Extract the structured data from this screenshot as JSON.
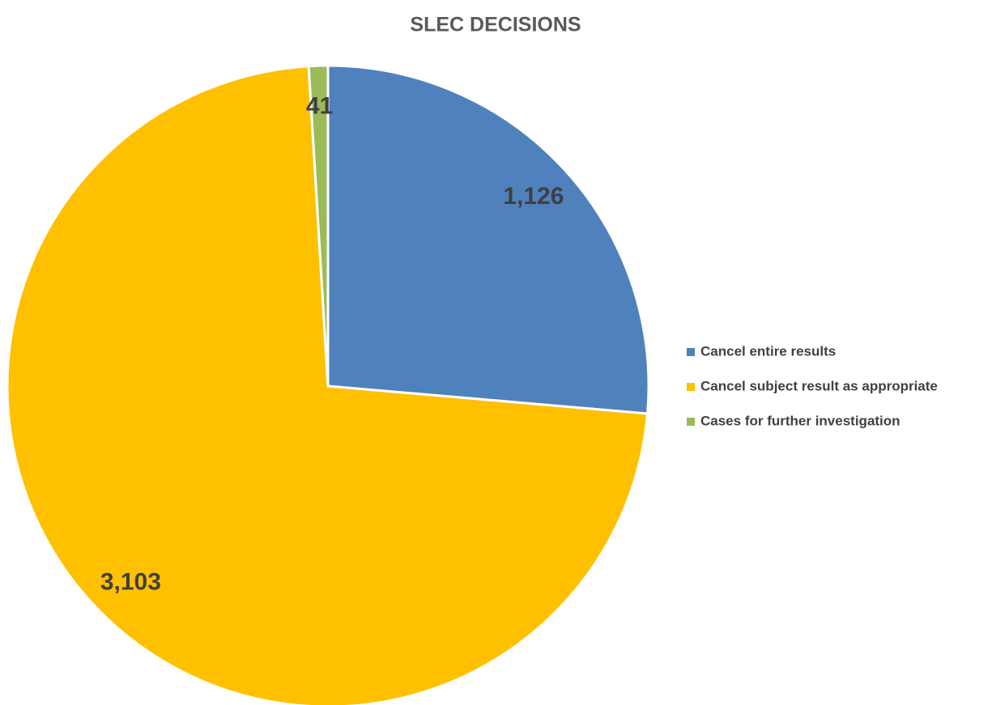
{
  "chart_data": {
    "type": "pie",
    "title": "SLEC DECISIONS",
    "categories": [
      "Cancel entire results",
      "Cancel subject result as appropriate",
      "Cases for further investigation"
    ],
    "values": [
      1126,
      3103,
      41
    ],
    "value_labels": [
      "1,126",
      "3,103",
      "41"
    ],
    "colors": [
      "#4f81bd",
      "#ffc000",
      "#9bbb59"
    ],
    "legend": "right"
  }
}
